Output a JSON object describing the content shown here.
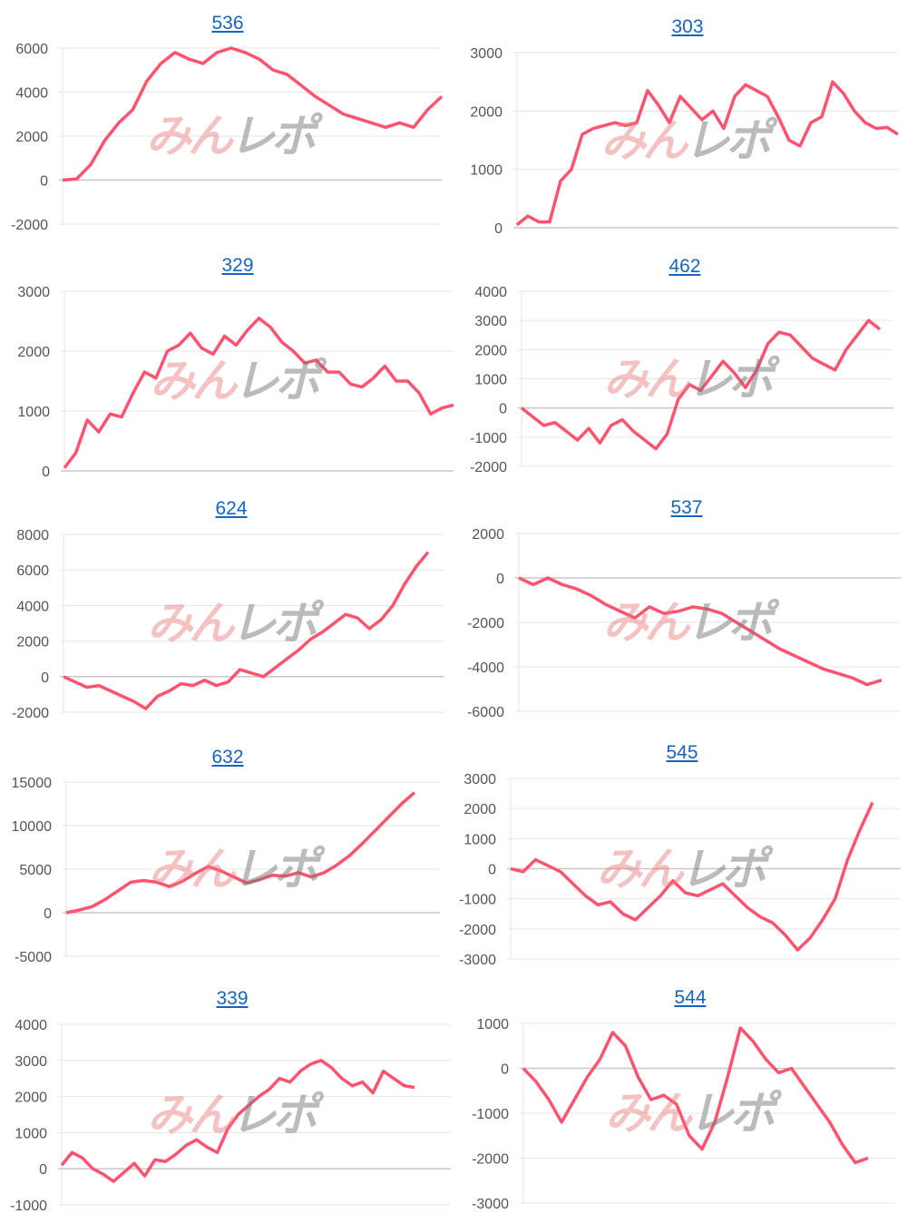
{
  "watermark": {
    "part1": "みん",
    "part2": "レポ"
  },
  "colors": {
    "line": "#ff5370",
    "title_link": "#1565c0",
    "grid": "#e6e6e6",
    "zero_line": "#c8c8c8"
  },
  "chart_data": [
    {
      "type": "line",
      "title": "536",
      "yticks": [
        6000,
        4000,
        2000,
        0,
        -2000
      ],
      "ylim": [
        -2000,
        6000
      ],
      "grid": true,
      "values": [
        0,
        50,
        700,
        1800,
        2600,
        3200,
        4500,
        5300,
        5800,
        5500,
        5300,
        5800,
        6000,
        5800,
        5500,
        5000,
        4800,
        4300,
        3800,
        3400,
        3000,
        2800,
        2600,
        2400,
        2600,
        2400,
        3200,
        3800
      ]
    },
    {
      "type": "line",
      "title": "303",
      "yticks": [
        3000,
        2000,
        1000,
        0
      ],
      "ylim": [
        0,
        3000
      ],
      "grid": true,
      "values": [
        50,
        200,
        100,
        100,
        800,
        1000,
        1600,
        1700,
        1750,
        1800,
        1750,
        1800,
        2350,
        2100,
        1800,
        2250,
        2050,
        1850,
        2000,
        1700,
        2250,
        2450,
        2350,
        2250,
        1900,
        1500,
        1400,
        1800,
        1900,
        2500,
        2300,
        2000,
        1800,
        1700,
        1720,
        1600
      ]
    },
    {
      "type": "line",
      "title": "329",
      "yticks": [
        3000,
        2000,
        1000,
        0
      ],
      "ylim": [
        0,
        3000
      ],
      "grid": true,
      "values": [
        50,
        300,
        850,
        650,
        950,
        900,
        1300,
        1650,
        1550,
        2000,
        2100,
        2300,
        2050,
        1950,
        2250,
        2100,
        2350,
        2550,
        2400,
        2150,
        2000,
        1800,
        1850,
        1650,
        1650,
        1450,
        1400,
        1550,
        1750,
        1500,
        1500,
        1300,
        950,
        1050,
        1100
      ]
    },
    {
      "type": "line",
      "title": "462",
      "yticks": [
        4000,
        3000,
        2000,
        1000,
        0,
        -1000,
        -2000
      ],
      "ylim": [
        -2000,
        4000
      ],
      "grid": true,
      "values": [
        0,
        -300,
        -600,
        -500,
        -800,
        -1100,
        -700,
        -1200,
        -600,
        -400,
        -800,
        -1100,
        -1400,
        -900,
        300,
        800,
        600,
        1100,
        1600,
        1200,
        700,
        1300,
        2200,
        2600,
        2500,
        2100,
        1700,
        1500,
        1300,
        2000,
        2500,
        3000,
        2700
      ]
    },
    {
      "type": "line",
      "title": "624",
      "yticks": [
        8000,
        6000,
        4000,
        2000,
        0,
        -2000
      ],
      "ylim": [
        -2000,
        8000
      ],
      "grid": true,
      "values": [
        0,
        -300,
        -600,
        -500,
        -800,
        -1100,
        -1400,
        -1800,
        -1100,
        -800,
        -400,
        -500,
        -200,
        -500,
        -300,
        400,
        200,
        0,
        500,
        1000,
        1500,
        2100,
        2500,
        3000,
        3500,
        3300,
        2700,
        3200,
        4000,
        5200,
        6200,
        7000
      ]
    },
    {
      "type": "line",
      "title": "537",
      "yticks": [
        2000,
        0,
        -2000,
        -4000,
        -6000
      ],
      "ylim": [
        -6000,
        2000
      ],
      "grid": true,
      "values": [
        0,
        -300,
        0,
        -300,
        -500,
        -800,
        -1200,
        -1500,
        -1800,
        -1300,
        -1600,
        -1500,
        -1300,
        -1400,
        -1600,
        -2000,
        -2400,
        -2800,
        -3200,
        -3500,
        -3800,
        -4100,
        -4300,
        -4500,
        -4800,
        -4600
      ]
    },
    {
      "type": "line",
      "title": "632",
      "yticks": [
        15000,
        10000,
        5000,
        0,
        -5000
      ],
      "ylim": [
        -5000,
        15000
      ],
      "grid": true,
      "values": [
        0,
        300,
        700,
        1500,
        2500,
        3500,
        3700,
        3500,
        3000,
        3600,
        4500,
        5300,
        4800,
        4100,
        3400,
        3800,
        4300,
        4200,
        4600,
        4100,
        4600,
        5500,
        6600,
        8000,
        9500,
        11000,
        12500,
        13800
      ]
    },
    {
      "type": "line",
      "title": "545",
      "yticks": [
        3000,
        2000,
        1000,
        0,
        -1000,
        -2000,
        -3000
      ],
      "ylim": [
        -3000,
        3000
      ],
      "grid": true,
      "values": [
        0,
        -100,
        300,
        100,
        -100,
        -500,
        -900,
        -1200,
        -1100,
        -1500,
        -1700,
        -1300,
        -900,
        -400,
        -800,
        -900,
        -700,
        -500,
        -900,
        -1300,
        -1600,
        -1800,
        -2200,
        -2700,
        -2300,
        -1700,
        -1000,
        300,
        1300,
        2200
      ]
    },
    {
      "type": "line",
      "title": "339",
      "yticks": [
        4000,
        3000,
        2000,
        1000,
        0,
        -1000
      ],
      "ylim": [
        -1000,
        4000
      ],
      "grid": true,
      "values": [
        100,
        450,
        300,
        0,
        -150,
        -350,
        -100,
        150,
        -200,
        250,
        200,
        400,
        650,
        800,
        600,
        450,
        1100,
        1500,
        1750,
        2000,
        2200,
        2500,
        2400,
        2700,
        2900,
        3000,
        2800,
        2500,
        2300,
        2400,
        2100,
        2700,
        2500,
        2300,
        2250
      ]
    },
    {
      "type": "line",
      "title": "544",
      "yticks": [
        1000,
        0,
        -1000,
        -2000,
        -3000
      ],
      "ylim": [
        -3000,
        1000
      ],
      "grid": true,
      "values": [
        0,
        -300,
        -700,
        -1200,
        -700,
        -200,
        200,
        800,
        500,
        -200,
        -700,
        -600,
        -800,
        -1500,
        -1800,
        -1200,
        -200,
        900,
        600,
        200,
        -100,
        0,
        -400,
        -800,
        -1200,
        -1700,
        -2100,
        -2000
      ]
    }
  ]
}
